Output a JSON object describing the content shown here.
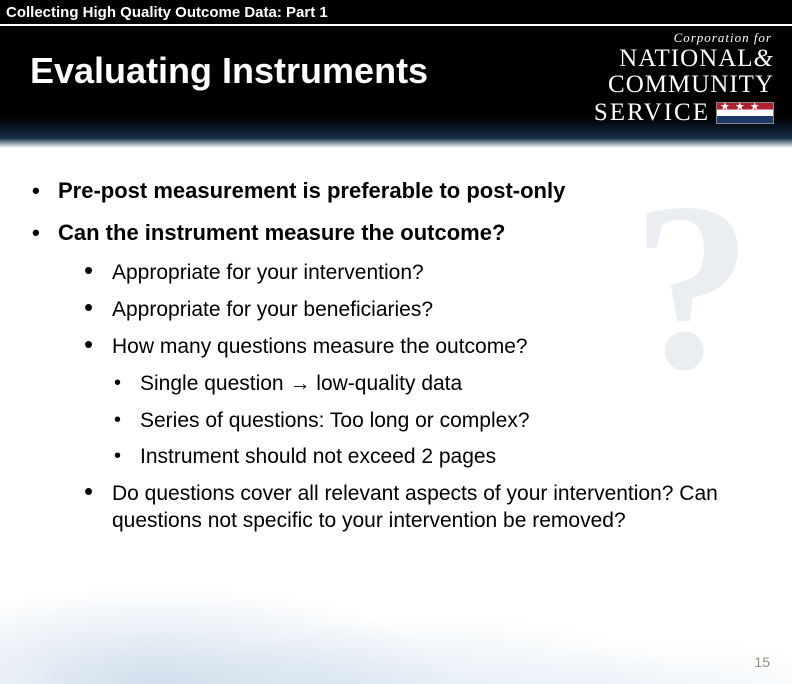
{
  "topbar": {
    "text": "Collecting High Quality Outcome Data: Part 1"
  },
  "header": {
    "title": "Evaluating Instruments",
    "logo": {
      "line1": "Corporation for",
      "line2_a": "NATIONAL",
      "line2_amp": "&",
      "line3": "COMMUNITY",
      "line4": "SERVICE"
    }
  },
  "bullets": {
    "b1": "Pre-post measurement is preferable to post-only",
    "b2": "Can the instrument measure the outcome?",
    "s1": "Appropriate for your intervention?",
    "s2": "Appropriate for your beneficiaries?",
    "s3": "How many questions measure the outcome?",
    "t1_a": "Single question ",
    "t1_arrow": "→",
    "t1_b": " low-quality data",
    "t2": "Series of questions: Too long or complex?",
    "t3": "Instrument should not exceed 2 pages",
    "s4": "Do questions cover all relevant aspects of your intervention? Can questions not specific to your intervention be removed?"
  },
  "page_number": "15",
  "colors": {
    "black": "#000000",
    "white": "#ffffff",
    "pagenum": "#9a8a7a",
    "wisp": "#9db8d0"
  }
}
